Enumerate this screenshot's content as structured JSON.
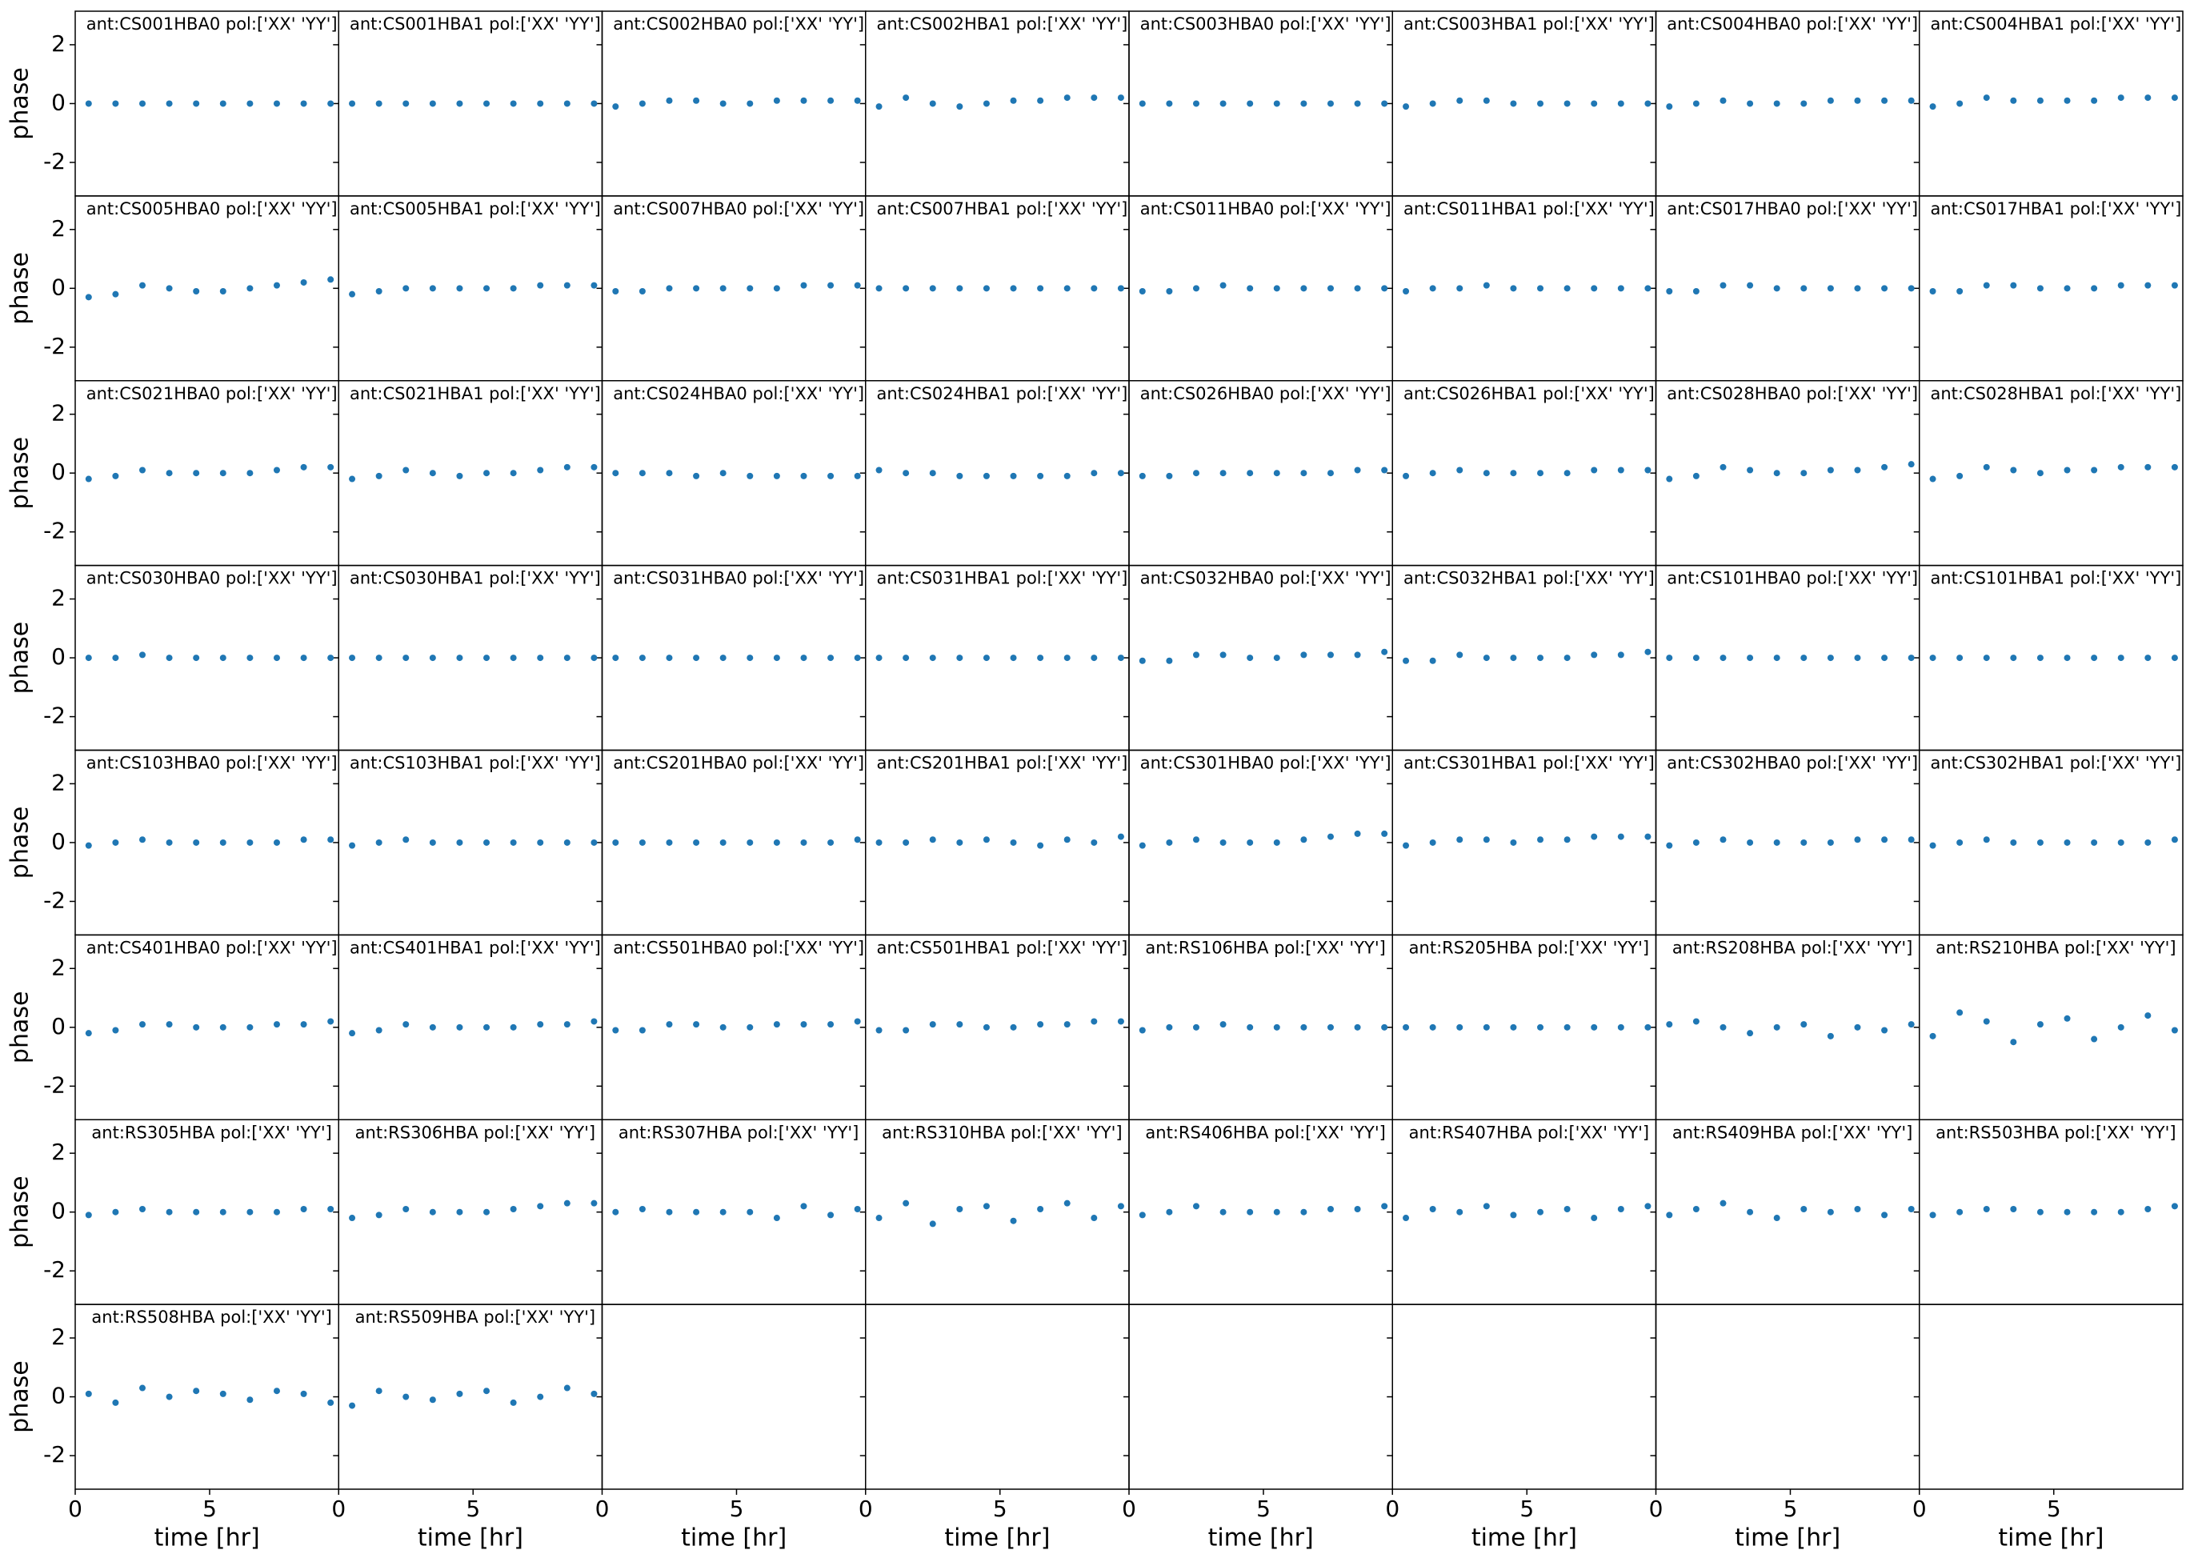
{
  "chart_data": {
    "type": "scatter",
    "xlabel": "time [hr]",
    "ylabel": "phase",
    "color": "#1f77b4",
    "xlim": [
      0,
      9.8
    ],
    "xticks": [
      0,
      5
    ],
    "ylim": [
      -3.14,
      3.14
    ],
    "yticks": [
      -2,
      0,
      2
    ],
    "columns": 8,
    "rows": 8,
    "x": [
      0.5,
      1.5,
      2.5,
      3.5,
      4.5,
      5.5,
      6.5,
      7.5,
      8.5,
      9.5
    ],
    "series": [
      {
        "name": "ant:CS001HBA0 pol:['XX' 'YY']",
        "values": [
          0,
          0,
          0,
          0,
          0,
          0,
          0,
          0,
          0,
          0
        ]
      },
      {
        "name": "ant:CS001HBA1 pol:['XX' 'YY']",
        "values": [
          0,
          0,
          0,
          0,
          0,
          0,
          0,
          0,
          0,
          0
        ]
      },
      {
        "name": "ant:CS002HBA0 pol:['XX' 'YY']",
        "values": [
          -0.1,
          0,
          0.1,
          0.1,
          0,
          0,
          0.1,
          0.1,
          0.1,
          0.1
        ]
      },
      {
        "name": "ant:CS002HBA1 pol:['XX' 'YY']",
        "values": [
          -0.1,
          0.2,
          0,
          -0.1,
          0,
          0.1,
          0.1,
          0.2,
          0.2,
          0.2
        ]
      },
      {
        "name": "ant:CS003HBA0 pol:['XX' 'YY']",
        "values": [
          0,
          0,
          0,
          0,
          0,
          0,
          0,
          0,
          0,
          0
        ]
      },
      {
        "name": "ant:CS003HBA1 pol:['XX' 'YY']",
        "values": [
          -0.1,
          0,
          0.1,
          0.1,
          0,
          0,
          0,
          0,
          0,
          0
        ]
      },
      {
        "name": "ant:CS004HBA0 pol:['XX' 'YY']",
        "values": [
          -0.1,
          0,
          0.1,
          0,
          0,
          0,
          0.1,
          0.1,
          0.1,
          0.1
        ]
      },
      {
        "name": "ant:CS004HBA1 pol:['XX' 'YY']",
        "values": [
          -0.1,
          0,
          0.2,
          0.1,
          0.1,
          0.1,
          0.1,
          0.2,
          0.2,
          0.2
        ]
      },
      {
        "name": "ant:CS005HBA0 pol:['XX' 'YY']",
        "values": [
          -0.3,
          -0.2,
          0.1,
          0,
          -0.1,
          -0.1,
          0,
          0.1,
          0.2,
          0.3
        ]
      },
      {
        "name": "ant:CS005HBA1 pol:['XX' 'YY']",
        "values": [
          -0.2,
          -0.1,
          0,
          0,
          0,
          0,
          0,
          0.1,
          0.1,
          0.1
        ]
      },
      {
        "name": "ant:CS007HBA0 pol:['XX' 'YY']",
        "values": [
          -0.1,
          -0.1,
          0,
          0,
          0,
          0,
          0,
          0.1,
          0.1,
          0.1
        ]
      },
      {
        "name": "ant:CS007HBA1 pol:['XX' 'YY']",
        "values": [
          0,
          0,
          0,
          0,
          0,
          0,
          0,
          0,
          0,
          0
        ]
      },
      {
        "name": "ant:CS011HBA0 pol:['XX' 'YY']",
        "values": [
          -0.1,
          -0.1,
          0,
          0.1,
          0,
          0,
          0,
          0,
          0,
          0
        ]
      },
      {
        "name": "ant:CS011HBA1 pol:['XX' 'YY']",
        "values": [
          -0.1,
          0,
          0,
          0.1,
          0,
          0,
          0,
          0,
          0,
          0
        ]
      },
      {
        "name": "ant:CS017HBA0 pol:['XX' 'YY']",
        "values": [
          -0.1,
          -0.1,
          0.1,
          0.1,
          0,
          0,
          0,
          0,
          0,
          0
        ]
      },
      {
        "name": "ant:CS017HBA1 pol:['XX' 'YY']",
        "values": [
          -0.1,
          -0.1,
          0.1,
          0.1,
          0,
          0,
          0,
          0.1,
          0.1,
          0.1
        ]
      },
      {
        "name": "ant:CS021HBA0 pol:['XX' 'YY']",
        "values": [
          -0.2,
          -0.1,
          0.1,
          0,
          0,
          0,
          0,
          0.1,
          0.2,
          0.2
        ]
      },
      {
        "name": "ant:CS021HBA1 pol:['XX' 'YY']",
        "values": [
          -0.2,
          -0.1,
          0.1,
          0,
          -0.1,
          0,
          0,
          0.1,
          0.2,
          0.2
        ]
      },
      {
        "name": "ant:CS024HBA0 pol:['XX' 'YY']",
        "values": [
          0,
          0,
          0,
          -0.1,
          0,
          -0.1,
          -0.1,
          -0.1,
          -0.1,
          -0.1
        ]
      },
      {
        "name": "ant:CS024HBA1 pol:['XX' 'YY']",
        "values": [
          0.1,
          0,
          0,
          -0.1,
          -0.1,
          -0.1,
          -0.1,
          -0.1,
          0,
          0
        ]
      },
      {
        "name": "ant:CS026HBA0 pol:['XX' 'YY']",
        "values": [
          -0.1,
          -0.1,
          0,
          0,
          0,
          0,
          0,
          0,
          0.1,
          0.1
        ]
      },
      {
        "name": "ant:CS026HBA1 pol:['XX' 'YY']",
        "values": [
          -0.1,
          0,
          0.1,
          0,
          0,
          0,
          0,
          0.1,
          0.1,
          0.1
        ]
      },
      {
        "name": "ant:CS028HBA0 pol:['XX' 'YY']",
        "values": [
          -0.2,
          -0.1,
          0.2,
          0.1,
          0,
          0,
          0.1,
          0.1,
          0.2,
          0.3
        ]
      },
      {
        "name": "ant:CS028HBA1 pol:['XX' 'YY']",
        "values": [
          -0.2,
          -0.1,
          0.2,
          0.1,
          0,
          0.1,
          0.1,
          0.2,
          0.2,
          0.2
        ]
      },
      {
        "name": "ant:CS030HBA0 pol:['XX' 'YY']",
        "values": [
          0,
          0,
          0.1,
          0,
          0,
          0,
          0,
          0,
          0,
          0
        ]
      },
      {
        "name": "ant:CS030HBA1 pol:['XX' 'YY']",
        "values": [
          0,
          0,
          0,
          0,
          0,
          0,
          0,
          0,
          0,
          0
        ]
      },
      {
        "name": "ant:CS031HBA0 pol:['XX' 'YY']",
        "values": [
          0,
          0,
          0,
          0,
          0,
          0,
          0,
          0,
          0,
          0
        ]
      },
      {
        "name": "ant:CS031HBA1 pol:['XX' 'YY']",
        "values": [
          0,
          0,
          0,
          0,
          0,
          0,
          0,
          0,
          0,
          0
        ]
      },
      {
        "name": "ant:CS032HBA0 pol:['XX' 'YY']",
        "values": [
          -0.1,
          -0.1,
          0.1,
          0.1,
          0,
          0,
          0.1,
          0.1,
          0.1,
          0.2
        ]
      },
      {
        "name": "ant:CS032HBA1 pol:['XX' 'YY']",
        "values": [
          -0.1,
          -0.1,
          0.1,
          0,
          0,
          0,
          0,
          0.1,
          0.1,
          0.2
        ]
      },
      {
        "name": "ant:CS101HBA0 pol:['XX' 'YY']",
        "values": [
          0,
          0,
          0,
          0,
          0,
          0,
          0,
          0,
          0,
          0
        ]
      },
      {
        "name": "ant:CS101HBA1 pol:['XX' 'YY']",
        "values": [
          0,
          0,
          0,
          0,
          0,
          0,
          0,
          0,
          0,
          0
        ]
      },
      {
        "name": "ant:CS103HBA0 pol:['XX' 'YY']",
        "values": [
          -0.1,
          0,
          0.1,
          0,
          0,
          0,
          0,
          0,
          0.1,
          0.1
        ]
      },
      {
        "name": "ant:CS103HBA1 pol:['XX' 'YY']",
        "values": [
          -0.1,
          0,
          0.1,
          0,
          0,
          0,
          0,
          0,
          0,
          0
        ]
      },
      {
        "name": "ant:CS201HBA0 pol:['XX' 'YY']",
        "values": [
          0,
          0,
          0,
          0,
          0,
          0,
          0,
          0,
          0,
          0.1
        ]
      },
      {
        "name": "ant:CS201HBA1 pol:['XX' 'YY']",
        "values": [
          0,
          0,
          0.1,
          0,
          0.1,
          0,
          -0.1,
          0.1,
          0,
          0.2
        ]
      },
      {
        "name": "ant:CS301HBA0 pol:['XX' 'YY']",
        "values": [
          -0.1,
          0,
          0.1,
          0,
          0,
          0,
          0.1,
          0.2,
          0.3,
          0.3
        ]
      },
      {
        "name": "ant:CS301HBA1 pol:['XX' 'YY']",
        "values": [
          -0.1,
          0,
          0.1,
          0.1,
          0,
          0.1,
          0.1,
          0.2,
          0.2,
          0.2
        ]
      },
      {
        "name": "ant:CS302HBA0 pol:['XX' 'YY']",
        "values": [
          -0.1,
          0,
          0.1,
          0,
          0,
          0,
          0,
          0.1,
          0.1,
          0.1
        ]
      },
      {
        "name": "ant:CS302HBA1 pol:['XX' 'YY']",
        "values": [
          -0.1,
          0,
          0.1,
          0,
          0,
          0,
          0,
          0,
          0,
          0.1
        ]
      },
      {
        "name": "ant:CS401HBA0 pol:['XX' 'YY']",
        "values": [
          -0.2,
          -0.1,
          0.1,
          0.1,
          0,
          0,
          0,
          0.1,
          0.1,
          0.2
        ]
      },
      {
        "name": "ant:CS401HBA1 pol:['XX' 'YY']",
        "values": [
          -0.2,
          -0.1,
          0.1,
          0,
          0,
          0,
          0,
          0.1,
          0.1,
          0.2
        ]
      },
      {
        "name": "ant:CS501HBA0 pol:['XX' 'YY']",
        "values": [
          -0.1,
          -0.1,
          0.1,
          0.1,
          0,
          0,
          0.1,
          0.1,
          0.1,
          0.2
        ]
      },
      {
        "name": "ant:CS501HBA1 pol:['XX' 'YY']",
        "values": [
          -0.1,
          -0.1,
          0.1,
          0.1,
          0,
          0,
          0.1,
          0.1,
          0.2,
          0.2
        ]
      },
      {
        "name": "ant:RS106HBA pol:['XX' 'YY']",
        "values": [
          -0.1,
          0,
          0,
          0.1,
          0,
          0,
          0,
          0,
          0,
          0
        ]
      },
      {
        "name": "ant:RS205HBA pol:['XX' 'YY']",
        "values": [
          0,
          0,
          0,
          0,
          0,
          0,
          0,
          0,
          0,
          0
        ]
      },
      {
        "name": "ant:RS208HBA pol:['XX' 'YY']",
        "values": [
          0.1,
          0.2,
          0,
          -0.2,
          0,
          0.1,
          -0.3,
          0,
          -0.1,
          0.1
        ]
      },
      {
        "name": "ant:RS210HBA pol:['XX' 'YY']",
        "values": [
          -0.3,
          0.5,
          0.2,
          -0.5,
          0.1,
          0.3,
          -0.4,
          0,
          0.4,
          -0.1
        ]
      },
      {
        "name": "ant:RS305HBA pol:['XX' 'YY']",
        "values": [
          -0.1,
          0,
          0.1,
          0,
          0,
          0,
          0,
          0,
          0.1,
          0.1
        ]
      },
      {
        "name": "ant:RS306HBA pol:['XX' 'YY']",
        "values": [
          -0.2,
          -0.1,
          0.1,
          0,
          0,
          0,
          0.1,
          0.2,
          0.3,
          0.3
        ]
      },
      {
        "name": "ant:RS307HBA pol:['XX' 'YY']",
        "values": [
          0,
          0.1,
          0,
          0,
          0,
          0,
          -0.2,
          0.2,
          -0.1,
          0.1
        ]
      },
      {
        "name": "ant:RS310HBA pol:['XX' 'YY']",
        "values": [
          -0.2,
          0.3,
          -0.4,
          0.1,
          0.2,
          -0.3,
          0.1,
          0.3,
          -0.2,
          0.2
        ]
      },
      {
        "name": "ant:RS406HBA pol:['XX' 'YY']",
        "values": [
          -0.1,
          0,
          0.2,
          0,
          0,
          0,
          0,
          0.1,
          0.1,
          0.2
        ]
      },
      {
        "name": "ant:RS407HBA pol:['XX' 'YY']",
        "values": [
          -0.2,
          0.1,
          0,
          0.2,
          -0.1,
          0,
          0.1,
          -0.2,
          0.1,
          0.2
        ]
      },
      {
        "name": "ant:RS409HBA pol:['XX' 'YY']",
        "values": [
          -0.1,
          0.1,
          0.3,
          0,
          -0.2,
          0.1,
          0,
          0.1,
          -0.1,
          0.1
        ]
      },
      {
        "name": "ant:RS503HBA pol:['XX' 'YY']",
        "values": [
          -0.1,
          0,
          0.1,
          0.1,
          0,
          0,
          0,
          0,
          0.1,
          0.2
        ]
      },
      {
        "name": "ant:RS508HBA pol:['XX' 'YY']",
        "values": [
          0.1,
          -0.2,
          0.3,
          0,
          0.2,
          0.1,
          -0.1,
          0.2,
          0.1,
          -0.2
        ]
      },
      {
        "name": "ant:RS509HBA pol:['XX' 'YY']",
        "values": [
          -0.3,
          0.2,
          0,
          -0.1,
          0.1,
          0.2,
          -0.2,
          0,
          0.3,
          0.1
        ]
      }
    ]
  }
}
